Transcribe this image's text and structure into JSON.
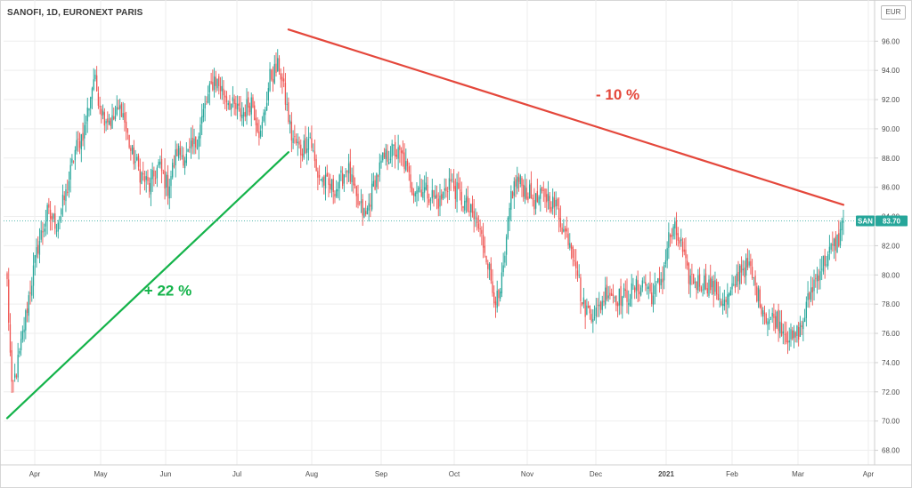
{
  "chart_data": {
    "type": "candlestick",
    "title": "SANOFI, 1D, EURONEXT PARIS",
    "currency": "EUR",
    "ylim": [
      67.0,
      97.6
    ],
    "yticks": [
      "68.00",
      "70.00",
      "72.00",
      "74.00",
      "76.00",
      "78.00",
      "80.00",
      "82.00",
      "84.00",
      "86.00",
      "88.00",
      "90.00",
      "92.00",
      "94.00",
      "96.00"
    ],
    "xticks": [
      {
        "label": "Apr",
        "bold": false
      },
      {
        "label": "May",
        "bold": false
      },
      {
        "label": "Jun",
        "bold": false
      },
      {
        "label": "Jul",
        "bold": false
      },
      {
        "label": "Aug",
        "bold": false
      },
      {
        "label": "Sep",
        "bold": false
      },
      {
        "label": "Oct",
        "bold": false
      },
      {
        "label": "Nov",
        "bold": false
      },
      {
        "label": "Dec",
        "bold": false
      },
      {
        "label": "2021",
        "bold": true
      },
      {
        "label": "Feb",
        "bold": false
      },
      {
        "label": "Mar",
        "bold": false
      },
      {
        "label": "Apr",
        "bold": false
      }
    ],
    "last_price": {
      "symbol": "SAN",
      "value": "83.70"
    },
    "up_color": "#26a69a",
    "down_color": "#ef5350",
    "close_anchors": [
      [
        0,
        79.5
      ],
      [
        3,
        72.0
      ],
      [
        8,
        74.5
      ],
      [
        14,
        78.5
      ],
      [
        20,
        82.0
      ],
      [
        26,
        84.2
      ],
      [
        32,
        83.5
      ],
      [
        38,
        85.5
      ],
      [
        44,
        88.5
      ],
      [
        50,
        90.0
      ],
      [
        56,
        93.5
      ],
      [
        62,
        91.0
      ],
      [
        68,
        90.5
      ],
      [
        74,
        91.5
      ],
      [
        80,
        88.5
      ],
      [
        86,
        87.0
      ],
      [
        92,
        86.0
      ],
      [
        98,
        87.5
      ],
      [
        104,
        86.0
      ],
      [
        110,
        88.5
      ],
      [
        116,
        88.0
      ],
      [
        122,
        89.0
      ],
      [
        128,
        91.5
      ],
      [
        134,
        93.5
      ],
      [
        140,
        92.5
      ],
      [
        146,
        91.5
      ],
      [
        152,
        91.0
      ],
      [
        158,
        92.0
      ],
      [
        164,
        89.5
      ],
      [
        170,
        93.5
      ],
      [
        176,
        94.3
      ],
      [
        180,
        92.0
      ],
      [
        184,
        89.5
      ],
      [
        190,
        88.5
      ],
      [
        196,
        89.5
      ],
      [
        200,
        87.0
      ],
      [
        204,
        86.5
      ],
      [
        208,
        86.0
      ],
      [
        214,
        86.0
      ],
      [
        220,
        87.5
      ],
      [
        226,
        85.0
      ],
      [
        232,
        84.0
      ],
      [
        238,
        86.5
      ],
      [
        244,
        88.0
      ],
      [
        250,
        88.5
      ],
      [
        256,
        88.0
      ],
      [
        262,
        86.0
      ],
      [
        268,
        86.0
      ],
      [
        274,
        85.5
      ],
      [
        280,
        85.0
      ],
      [
        286,
        86.5
      ],
      [
        292,
        85.5
      ],
      [
        298,
        84.5
      ],
      [
        304,
        83.5
      ],
      [
        310,
        81.5
      ],
      [
        314,
        79.0
      ],
      [
        318,
        78.0
      ],
      [
        322,
        81.0
      ],
      [
        326,
        85.5
      ],
      [
        330,
        86.5
      ],
      [
        334,
        86.0
      ],
      [
        338,
        85.5
      ],
      [
        342,
        85.0
      ],
      [
        348,
        85.5
      ],
      [
        352,
        85.0
      ],
      [
        356,
        84.5
      ],
      [
        360,
        83.0
      ],
      [
        364,
        82.5
      ],
      [
        368,
        81.0
      ],
      [
        372,
        78.0
      ],
      [
        376,
        77.5
      ],
      [
        382,
        77.5
      ],
      [
        388,
        79.0
      ],
      [
        394,
        78.5
      ],
      [
        400,
        78.5
      ],
      [
        406,
        79.0
      ],
      [
        412,
        79.5
      ],
      [
        418,
        78.5
      ],
      [
        424,
        80.0
      ],
      [
        428,
        82.5
      ],
      [
        432,
        83.0
      ],
      [
        436,
        82.0
      ],
      [
        440,
        80.0
      ],
      [
        446,
        79.5
      ],
      [
        452,
        79.5
      ],
      [
        458,
        79.0
      ],
      [
        464,
        78.0
      ],
      [
        470,
        79.0
      ],
      [
        474,
        80.5
      ],
      [
        480,
        80.5
      ],
      [
        486,
        78.5
      ],
      [
        492,
        77.0
      ],
      [
        498,
        77.0
      ],
      [
        504,
        76.0
      ],
      [
        508,
        75.5
      ],
      [
        514,
        76.5
      ],
      [
        520,
        79.0
      ],
      [
        526,
        80.5
      ],
      [
        532,
        81.5
      ],
      [
        538,
        82.5
      ],
      [
        541,
        83.7
      ]
    ],
    "trendlines": [
      {
        "name": "rise",
        "color": "#14b34a",
        "from": [
          0,
          70.2
        ],
        "to": [
          182,
          88.4
        ]
      },
      {
        "name": "fall",
        "color": "#e4473b",
        "from": [
          182,
          96.8
        ],
        "to": [
          541,
          84.8
        ]
      }
    ],
    "annotations": [
      {
        "text": "+ 22 %",
        "color": "#14b34a",
        "anchor": [
          104,
          78.6
        ]
      },
      {
        "text": "- 10 %",
        "color": "#e4473b",
        "anchor": [
          395,
          92.0
        ]
      }
    ]
  }
}
